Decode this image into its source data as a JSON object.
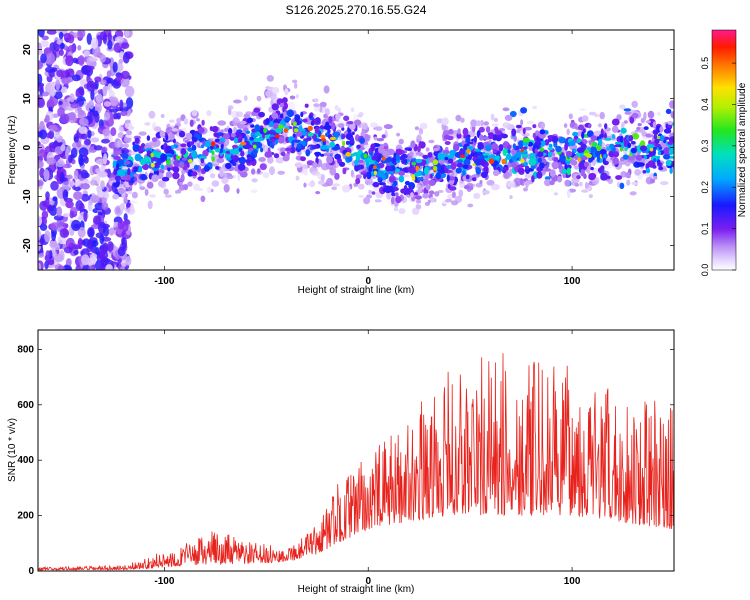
{
  "title": "S126.2025.270.16.55.G24",
  "chart_data": [
    {
      "type": "heatmap",
      "xlabel": "Height of straight line (km)",
      "ylabel": "Frequency (Hz)",
      "xlim": [
        -162,
        150
      ],
      "ylim": [
        -25,
        24
      ],
      "xticks": [
        -100,
        0,
        100
      ],
      "yticks": [
        -20,
        -10,
        0,
        10,
        20
      ],
      "colorbar": {
        "label": "Normalized spectral amplitude",
        "range": [
          0,
          0.58
        ],
        "ticks": [
          0.0,
          0.1,
          0.2,
          0.3,
          0.4,
          0.5
        ]
      },
      "signal_band": {
        "description": "frequency centre of signal ridge vs height",
        "x": [
          -125,
          -100,
          -80,
          -60,
          -40,
          -25,
          -10,
          0,
          15,
          30,
          50,
          70,
          90,
          110,
          130,
          150
        ],
        "center_hz": [
          -4,
          -2,
          -1,
          1,
          4,
          2,
          0,
          -3,
          -5,
          -4,
          -2,
          -1,
          -1,
          -1,
          0,
          0
        ]
      }
    },
    {
      "type": "line",
      "xlabel": "Height of straight line (km)",
      "ylabel": "SNR (10 * v/v)",
      "xlim": [
        -162,
        150
      ],
      "ylim": [
        0,
        870
      ],
      "xticks": [
        -100,
        0,
        100
      ],
      "yticks": [
        0,
        200,
        400,
        600,
        800
      ],
      "color": "#e8231d",
      "envelope": {
        "x": [
          -162,
          -120,
          -105,
          -90,
          -75,
          -60,
          -45,
          -35,
          -25,
          -15,
          0,
          20,
          40,
          60,
          80,
          100,
          120,
          150
        ],
        "low": [
          3,
          5,
          10,
          20,
          25,
          25,
          30,
          40,
          60,
          100,
          150,
          180,
          200,
          200,
          200,
          200,
          180,
          150
        ],
        "high": [
          14,
          20,
          60,
          100,
          150,
          110,
          90,
          110,
          170,
          320,
          420,
          560,
          730,
          800,
          760,
          740,
          650,
          600
        ]
      }
    }
  ]
}
